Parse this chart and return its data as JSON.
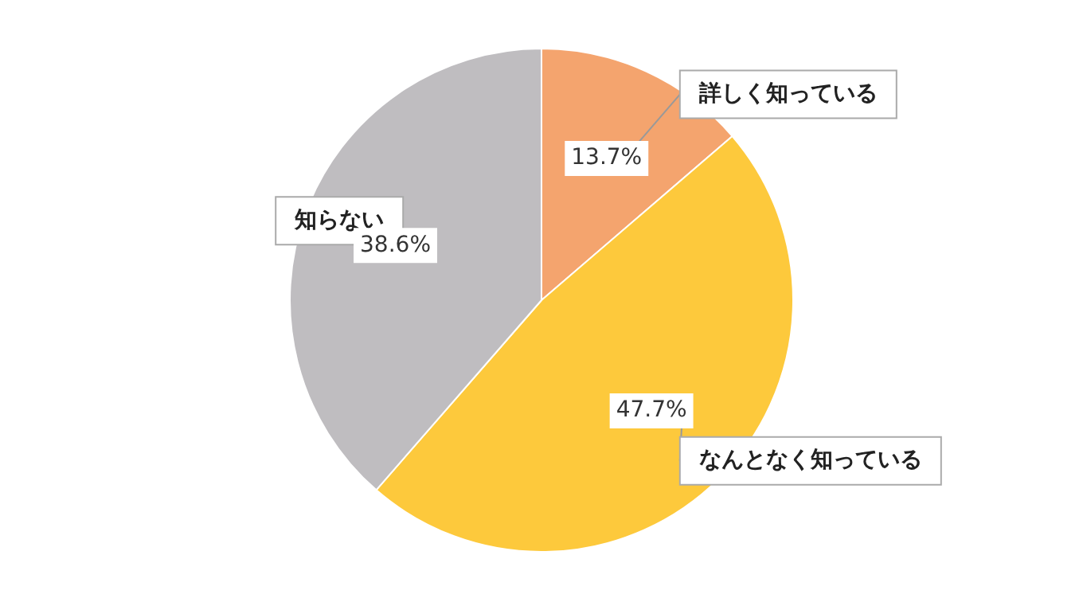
{
  "chart_data": {
    "type": "pie",
    "categories": [
      "詳しく知っている",
      "なんとなく知っている",
      "知らない"
    ],
    "values": [
      13.7,
      47.7,
      38.6
    ],
    "colors": [
      "#f4a46e",
      "#fdc93c",
      "#bfbdc0"
    ],
    "value_labels": [
      "13.7%",
      "47.7%",
      "38.6%"
    ],
    "legend": false
  }
}
